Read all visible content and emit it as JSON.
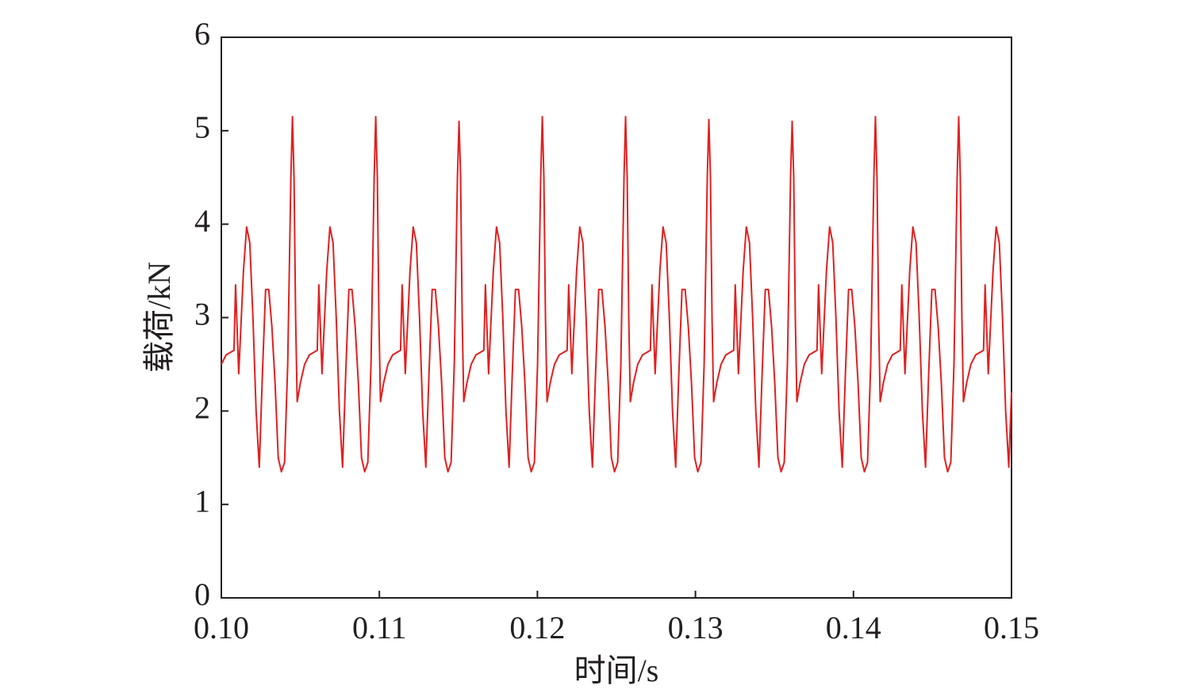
{
  "chart_data": {
    "type": "line",
    "xlabel": "时间/s",
    "ylabel": "载荷/kN",
    "xlim": [
      0.1,
      0.15
    ],
    "ylim": [
      0,
      6
    ],
    "xticks": [
      {
        "value": 0.1,
        "label": "0.10"
      },
      {
        "value": 0.11,
        "label": "0.11"
      },
      {
        "value": 0.12,
        "label": "0.12"
      },
      {
        "value": 0.13,
        "label": "0.13"
      },
      {
        "value": 0.14,
        "label": "0.14"
      },
      {
        "value": 0.15,
        "label": "0.15"
      }
    ],
    "yticks": [
      0,
      1,
      2,
      3,
      4,
      5,
      6
    ],
    "series": [
      {
        "color": "#e02020",
        "x": [
          0.1,
          0.1003,
          0.1008,
          0.1009,
          0.1011,
          0.1014,
          0.1016,
          0.1018,
          0.102,
          0.1022,
          0.1024,
          0.1026,
          0.1028,
          0.103,
          0.1032,
          0.1034,
          0.1036,
          0.1038,
          0.104,
          0.1042,
          0.1044,
          0.1045,
          0.1046,
          0.1047,
          0.1048,
          0.105,
          0.10527,
          0.10557,
          0.10607,
          0.10617,
          0.10637,
          0.10667,
          0.10687,
          0.10707,
          0.10727,
          0.10747,
          0.10767,
          0.10787,
          0.10807,
          0.10827,
          0.10847,
          0.10867,
          0.10887,
          0.10907,
          0.10927,
          0.10947,
          0.10967,
          0.10977,
          0.10987,
          0.10997,
          0.11007,
          0.11027,
          0.11054,
          0.11084,
          0.11134,
          0.11144,
          0.11164,
          0.11194,
          0.11214,
          0.11234,
          0.11254,
          0.11274,
          0.11294,
          0.11314,
          0.11334,
          0.11354,
          0.11374,
          0.11394,
          0.11414,
          0.11434,
          0.11454,
          0.11474,
          0.11494,
          0.11504,
          0.11514,
          0.11524,
          0.11534,
          0.11554,
          0.11581,
          0.11611,
          0.11661,
          0.11671,
          0.11691,
          0.11721,
          0.11741,
          0.11761,
          0.11781,
          0.11801,
          0.11821,
          0.11841,
          0.11861,
          0.11881,
          0.11901,
          0.11921,
          0.11941,
          0.11961,
          0.11981,
          0.12001,
          0.12021,
          0.12031,
          0.12041,
          0.12051,
          0.12061,
          0.12081,
          0.12108,
          0.12138,
          0.12188,
          0.12198,
          0.12218,
          0.12248,
          0.12268,
          0.12288,
          0.12308,
          0.12328,
          0.12348,
          0.12368,
          0.12388,
          0.12408,
          0.12428,
          0.12448,
          0.12468,
          0.12488,
          0.12508,
          0.12528,
          0.12548,
          0.12558,
          0.12568,
          0.12578,
          0.12588,
          0.12608,
          0.12635,
          0.12665,
          0.12715,
          0.12725,
          0.12745,
          0.12775,
          0.12795,
          0.12815,
          0.12835,
          0.12855,
          0.12875,
          0.12895,
          0.12915,
          0.12935,
          0.12955,
          0.12975,
          0.12995,
          0.13015,
          0.13035,
          0.13055,
          0.13075,
          0.13085,
          0.13095,
          0.13105,
          0.13115,
          0.13135,
          0.13162,
          0.13192,
          0.13242,
          0.13252,
          0.13272,
          0.13302,
          0.13322,
          0.13342,
          0.13362,
          0.13382,
          0.13402,
          0.13422,
          0.13442,
          0.13462,
          0.13482,
          0.13502,
          0.13522,
          0.13542,
          0.13562,
          0.13582,
          0.13602,
          0.13612,
          0.13622,
          0.13632,
          0.13642,
          0.13662,
          0.13689,
          0.13719,
          0.13769,
          0.13779,
          0.13799,
          0.13829,
          0.13849,
          0.13869,
          0.13889,
          0.13909,
          0.13929,
          0.13949,
          0.13969,
          0.13989,
          0.14009,
          0.14029,
          0.14049,
          0.14069,
          0.14089,
          0.14109,
          0.14129,
          0.14139,
          0.14149,
          0.14159,
          0.14169,
          0.14189,
          0.14216,
          0.14246,
          0.14296,
          0.14306,
          0.14326,
          0.14356,
          0.14376,
          0.14396,
          0.14416,
          0.14436,
          0.14456,
          0.14476,
          0.14496,
          0.14516,
          0.14536,
          0.14556,
          0.14576,
          0.14596,
          0.14616,
          0.14636,
          0.14656,
          0.14666,
          0.14676,
          0.14686,
          0.14696,
          0.14716,
          0.14743,
          0.14773,
          0.14823,
          0.14833,
          0.14853,
          0.14883,
          0.14903,
          0.14923,
          0.14943,
          0.14963,
          0.14983,
          0.15
        ],
        "values": [
          2.5,
          2.6,
          2.65,
          3.35,
          2.4,
          3.5,
          3.97,
          3.8,
          3.0,
          2.0,
          1.4,
          2.4,
          3.3,
          3.3,
          2.9,
          2.3,
          1.5,
          1.35,
          1.45,
          2.5,
          4.5,
          5.15,
          4.5,
          3.0,
          2.1,
          2.3,
          2.5,
          2.6,
          2.65,
          3.35,
          2.4,
          3.5,
          3.97,
          3.8,
          3.0,
          2.0,
          1.4,
          2.4,
          3.3,
          3.3,
          2.9,
          2.3,
          1.5,
          1.35,
          1.45,
          2.5,
          4.5,
          5.15,
          4.5,
          3.0,
          2.1,
          2.3,
          2.5,
          2.6,
          2.65,
          3.35,
          2.4,
          3.5,
          3.97,
          3.8,
          3.0,
          2.0,
          1.4,
          2.4,
          3.3,
          3.3,
          2.9,
          2.3,
          1.5,
          1.35,
          1.45,
          2.5,
          4.5,
          5.1,
          4.5,
          3.0,
          2.1,
          2.3,
          2.5,
          2.6,
          2.65,
          3.35,
          2.4,
          3.5,
          3.97,
          3.8,
          3.0,
          2.0,
          1.4,
          2.4,
          3.3,
          3.3,
          2.9,
          2.3,
          1.5,
          1.35,
          1.45,
          2.5,
          4.5,
          5.15,
          4.5,
          3.0,
          2.1,
          2.3,
          2.5,
          2.6,
          2.65,
          3.35,
          2.4,
          3.5,
          3.97,
          3.8,
          3.0,
          2.0,
          1.4,
          2.4,
          3.3,
          3.3,
          2.9,
          2.3,
          1.5,
          1.35,
          1.45,
          2.5,
          4.5,
          5.15,
          4.5,
          3.0,
          2.1,
          2.3,
          2.5,
          2.6,
          2.65,
          3.35,
          2.4,
          3.5,
          3.97,
          3.8,
          3.0,
          2.0,
          1.4,
          2.4,
          3.3,
          3.3,
          2.9,
          2.3,
          1.5,
          1.35,
          1.45,
          2.5,
          4.5,
          5.12,
          4.5,
          3.0,
          2.1,
          2.3,
          2.5,
          2.6,
          2.65,
          3.35,
          2.4,
          3.5,
          3.97,
          3.8,
          3.0,
          2.0,
          1.4,
          2.4,
          3.3,
          3.3,
          2.9,
          2.3,
          1.5,
          1.35,
          1.45,
          2.5,
          4.5,
          5.1,
          4.5,
          3.0,
          2.1,
          2.3,
          2.5,
          2.6,
          2.65,
          3.35,
          2.4,
          3.5,
          3.97,
          3.8,
          3.0,
          2.0,
          1.4,
          2.4,
          3.3,
          3.3,
          2.9,
          2.3,
          1.5,
          1.35,
          1.45,
          2.5,
          4.5,
          5.15,
          4.5,
          3.0,
          2.1,
          2.3,
          2.5,
          2.6,
          2.65,
          3.35,
          2.4,
          3.5,
          3.97,
          3.8,
          3.0,
          2.0,
          1.4,
          2.4,
          3.3,
          3.3,
          2.9,
          2.3,
          1.5,
          1.35,
          1.45,
          2.5,
          4.5,
          5.15,
          4.5,
          3.0,
          2.1,
          2.3,
          2.5,
          2.6,
          2.65,
          3.35,
          2.4,
          3.5,
          3.97,
          3.8,
          3.0,
          2.0,
          1.4,
          2.2
        ]
      }
    ]
  }
}
